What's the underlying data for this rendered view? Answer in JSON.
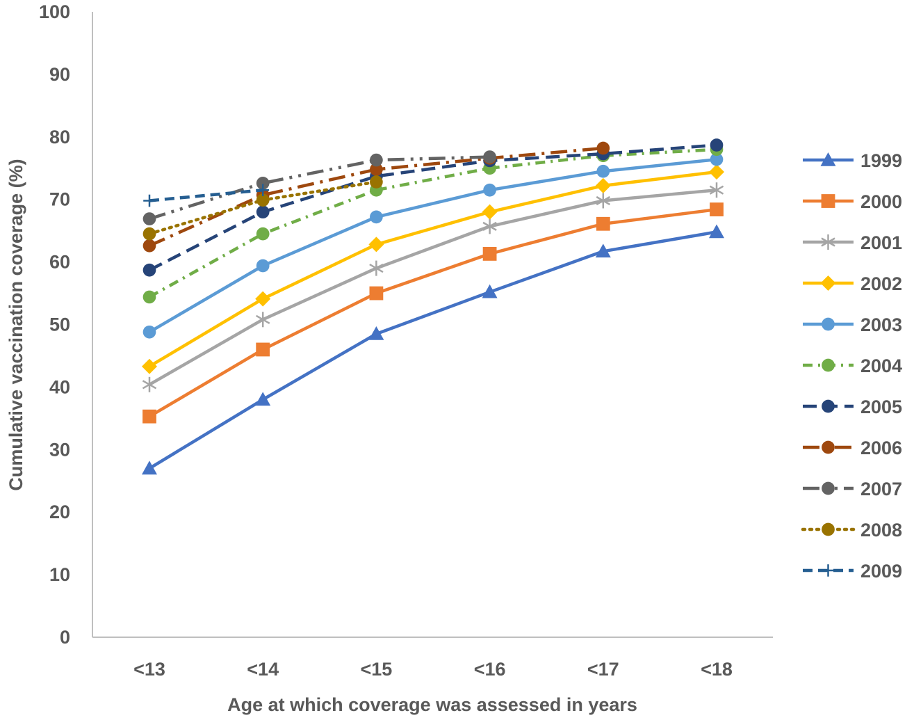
{
  "chart_data": {
    "type": "line",
    "title": "",
    "xlabel": "Age at which coverage was assessed in years",
    "ylabel": "Cumulative vaccination coverage (%)",
    "ylim": [
      0,
      100
    ],
    "yticks": [
      "0",
      "10",
      "20",
      "30",
      "40",
      "50",
      "60",
      "70",
      "80",
      "90",
      "100"
    ],
    "categories": [
      "<13",
      "<14",
      "<15",
      "<16",
      "<17",
      "<18"
    ],
    "grid": false,
    "legend_position": "right",
    "series": [
      {
        "name": "1999",
        "color": "#4472C4",
        "marker": "triangle",
        "dash": "solid",
        "values": [
          27,
          38,
          48.5,
          55.2,
          61.7,
          64.8
        ]
      },
      {
        "name": "2000",
        "color": "#ED7D31",
        "marker": "square",
        "dash": "solid",
        "values": [
          35.3,
          46,
          55,
          61.3,
          66.1,
          68.4
        ]
      },
      {
        "name": "2001",
        "color": "#A5A5A5",
        "marker": "asterisk",
        "dash": "solid",
        "values": [
          40.4,
          50.8,
          59,
          65.7,
          69.8,
          71.5
        ]
      },
      {
        "name": "2002",
        "color": "#FFC000",
        "marker": "diamond",
        "dash": "solid",
        "values": [
          43.3,
          54.1,
          62.8,
          68,
          72.2,
          74.4
        ]
      },
      {
        "name": "2003",
        "color": "#5B9BD5",
        "marker": "circle",
        "dash": "solid",
        "values": [
          48.8,
          59.4,
          67.2,
          71.5,
          74.5,
          76.4
        ]
      },
      {
        "name": "2004",
        "color": "#70AD47",
        "marker": "circle",
        "dash": "dashdot",
        "values": [
          54.4,
          64.5,
          71.5,
          75,
          77,
          78
        ]
      },
      {
        "name": "2005",
        "color": "#264478",
        "marker": "circle",
        "dash": "longdash",
        "values": [
          58.7,
          68,
          73.7,
          76.2,
          77.3,
          78.7
        ]
      },
      {
        "name": "2006",
        "color": "#9E480E",
        "marker": "circle",
        "dash": "longdashdot",
        "values": [
          62.6,
          70.7,
          74.8,
          76.6,
          78.2,
          null
        ]
      },
      {
        "name": "2007",
        "color": "#636363",
        "marker": "circle",
        "dash": "longdashdotdot",
        "values": [
          66.9,
          72.6,
          76.3,
          76.8,
          null,
          null
        ]
      },
      {
        "name": "2008",
        "color": "#997300",
        "marker": "circle",
        "dash": "dot",
        "values": [
          64.5,
          69.9,
          72.8,
          null,
          null,
          null
        ]
      },
      {
        "name": "2009",
        "color": "#255E91",
        "marker": "plus",
        "dash": "dash",
        "values": [
          69.8,
          71.5,
          null,
          null,
          null,
          null
        ]
      }
    ]
  }
}
